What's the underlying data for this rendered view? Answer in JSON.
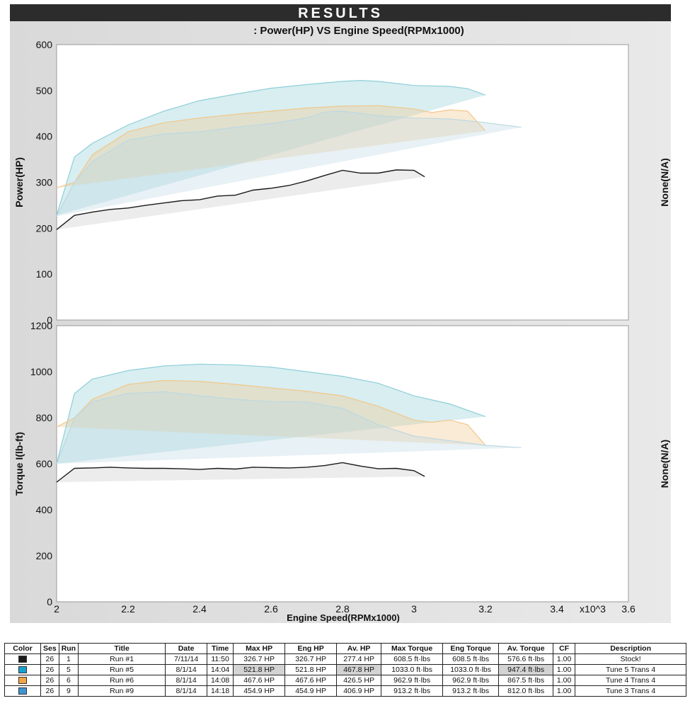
{
  "header": {
    "banner": "RESULTS"
  },
  "chart_data": [
    {
      "type": "line",
      "title": ": Power(HP) VS Engine Speed(RPMx1000)",
      "ylabel": "Power(HP)",
      "ylabel_right": "None(N/A)",
      "ylim": [
        0,
        600
      ],
      "xlim": [
        2.0,
        3.6
      ],
      "yticks": [
        "600",
        "500",
        "400",
        "300",
        "200",
        "100",
        "0"
      ],
      "series": [
        {
          "name": "Run #1",
          "color": "#1a1a1a",
          "x": [
            2.0,
            2.05,
            2.1,
            2.15,
            2.2,
            2.25,
            2.3,
            2.35,
            2.4,
            2.45,
            2.5,
            2.55,
            2.6,
            2.65,
            2.7,
            2.75,
            2.8,
            2.85,
            2.9,
            2.95,
            3.0,
            3.03
          ],
          "y": [
            197,
            228,
            235,
            241,
            244,
            250,
            255,
            260,
            262,
            270,
            272,
            283,
            287,
            293,
            303,
            315,
            326,
            320,
            320,
            327,
            326,
            312
          ]
        },
        {
          "name": "Run #5",
          "color": "#8ecfd8",
          "x": [
            2.0,
            2.05,
            2.1,
            2.2,
            2.3,
            2.4,
            2.5,
            2.6,
            2.7,
            2.8,
            2.85,
            2.9,
            3.0,
            3.1,
            3.15,
            3.2
          ],
          "y": [
            228,
            355,
            385,
            425,
            455,
            478,
            492,
            505,
            513,
            520,
            522,
            520,
            511,
            509,
            504,
            490
          ]
        },
        {
          "name": "Run #6",
          "color": "#f2c789",
          "x": [
            2.0,
            2.05,
            2.1,
            2.2,
            2.3,
            2.4,
            2.5,
            2.6,
            2.7,
            2.8,
            2.9,
            3.0,
            3.05,
            3.1,
            3.15,
            3.2
          ],
          "y": [
            288,
            300,
            360,
            410,
            430,
            440,
            448,
            455,
            462,
            466,
            467,
            460,
            452,
            458,
            455,
            412
          ]
        },
        {
          "name": "Run #9",
          "color": "#bcd8e2",
          "x": [
            2.0,
            2.05,
            2.1,
            2.2,
            2.3,
            2.4,
            2.5,
            2.6,
            2.7,
            2.75,
            2.8,
            2.9,
            3.0,
            3.1,
            3.2,
            3.3
          ],
          "y": [
            226,
            300,
            345,
            392,
            405,
            410,
            420,
            428,
            440,
            453,
            455,
            445,
            440,
            438,
            430,
            420
          ]
        }
      ]
    },
    {
      "type": "line",
      "title": "",
      "xlabel": "Engine Speed(RPMx1000)",
      "ylabel": "Torque I(lb-ft)",
      "ylabel_right": "None(N/A)",
      "ylim": [
        0,
        1200
      ],
      "xlim": [
        2.0,
        3.6
      ],
      "yticks": [
        "1200",
        "1000",
        "800",
        "600",
        "400",
        "200",
        "0"
      ],
      "xticks": [
        "2",
        "2.2",
        "2.4",
        "2.6",
        "2.8",
        "3",
        "3.2",
        "3.4",
        "x10^3",
        "3.6"
      ],
      "series": [
        {
          "name": "Run #1",
          "color": "#1a1a1a",
          "x": [
            2.0,
            2.05,
            2.1,
            2.15,
            2.2,
            2.25,
            2.3,
            2.35,
            2.4,
            2.45,
            2.5,
            2.55,
            2.6,
            2.65,
            2.7,
            2.75,
            2.8,
            2.85,
            2.9,
            2.95,
            3.0,
            3.03
          ],
          "y": [
            520,
            580,
            582,
            585,
            582,
            580,
            580,
            578,
            575,
            580,
            577,
            585,
            583,
            582,
            585,
            592,
            605,
            590,
            578,
            580,
            570,
            545
          ]
        },
        {
          "name": "Run #5",
          "color": "#8ecfd8",
          "x": [
            2.0,
            2.05,
            2.1,
            2.2,
            2.3,
            2.4,
            2.5,
            2.6,
            2.7,
            2.8,
            2.9,
            3.0,
            3.1,
            3.2
          ],
          "y": [
            600,
            905,
            968,
            1005,
            1025,
            1033,
            1030,
            1020,
            1000,
            980,
            950,
            895,
            860,
            805
          ]
        },
        {
          "name": "Run #6",
          "color": "#f2c789",
          "x": [
            2.0,
            2.05,
            2.1,
            2.2,
            2.3,
            2.4,
            2.5,
            2.6,
            2.7,
            2.8,
            2.9,
            3.0,
            3.05,
            3.1,
            3.15,
            3.2
          ],
          "y": [
            760,
            800,
            880,
            945,
            962,
            958,
            945,
            930,
            915,
            895,
            850,
            790,
            780,
            790,
            770,
            680
          ]
        },
        {
          "name": "Run #9",
          "color": "#bcd8e2",
          "x": [
            2.0,
            2.05,
            2.1,
            2.2,
            2.3,
            2.4,
            2.5,
            2.6,
            2.7,
            2.8,
            2.9,
            3.0,
            3.1,
            3.2,
            3.3
          ],
          "y": [
            600,
            800,
            870,
            905,
            913,
            895,
            880,
            870,
            868,
            840,
            770,
            720,
            700,
            680,
            670
          ]
        }
      ]
    }
  ],
  "table": {
    "headers": [
      "Color",
      "Ses",
      "Run",
      "Title",
      "Date",
      "Time",
      "Max HP",
      "Eng HP",
      "Av. HP",
      "Max Torque",
      "Eng Torque",
      "Av. Torque",
      "CF",
      "Description"
    ],
    "rows": [
      {
        "color": "#1a1a1a",
        "ses": "26",
        "run": "1",
        "title": "Run #1",
        "date": "7/11/14",
        "time": "11:50",
        "max_hp": "326.7 HP",
        "eng_hp": "326.7 HP",
        "av_hp": "277.4 HP",
        "max_torque": "608.5 ft·lbs",
        "eng_torque": "608.5 ft·lbs",
        "av_torque": "576.6 ft·lbs",
        "cf": "1.00",
        "description": "Stock!"
      },
      {
        "color": "#1aa0cf",
        "ses": "26",
        "run": "5",
        "title": "Run #5",
        "date": "8/1/14",
        "time": "14:04",
        "max_hp": "521.8 HP",
        "eng_hp": "521.8 HP",
        "av_hp": "467.8 HP",
        "max_torque": "1033.0 ft·lbs",
        "eng_torque": "1033.0 ft·lbs",
        "av_torque": "947.4 ft·lbs",
        "cf": "1.00",
        "description": "Tune 5 Trans 4"
      },
      {
        "color": "#f2a444",
        "ses": "26",
        "run": "6",
        "title": "Run #6",
        "date": "8/1/14",
        "time": "14:08",
        "max_hp": "467.6 HP",
        "eng_hp": "467.6 HP",
        "av_hp": "426.5 HP",
        "max_torque": "962.9 ft·lbs",
        "eng_torque": "962.9 ft·lbs",
        "av_torque": "867.5 ft·lbs",
        "cf": "1.00",
        "description": "Tune 4 Trans 4"
      },
      {
        "color": "#3f95d2",
        "ses": "26",
        "run": "9",
        "title": "Run #9",
        "date": "8/1/14",
        "time": "14:18",
        "max_hp": "454.9 HP",
        "eng_hp": "454.9 HP",
        "av_hp": "406.9 HP",
        "max_torque": "913.2 ft·lbs",
        "eng_torque": "913.2 ft·lbs",
        "av_torque": "812.0 ft·lbs",
        "cf": "1.00",
        "description": "Tune 3 Trans 4"
      }
    ]
  }
}
